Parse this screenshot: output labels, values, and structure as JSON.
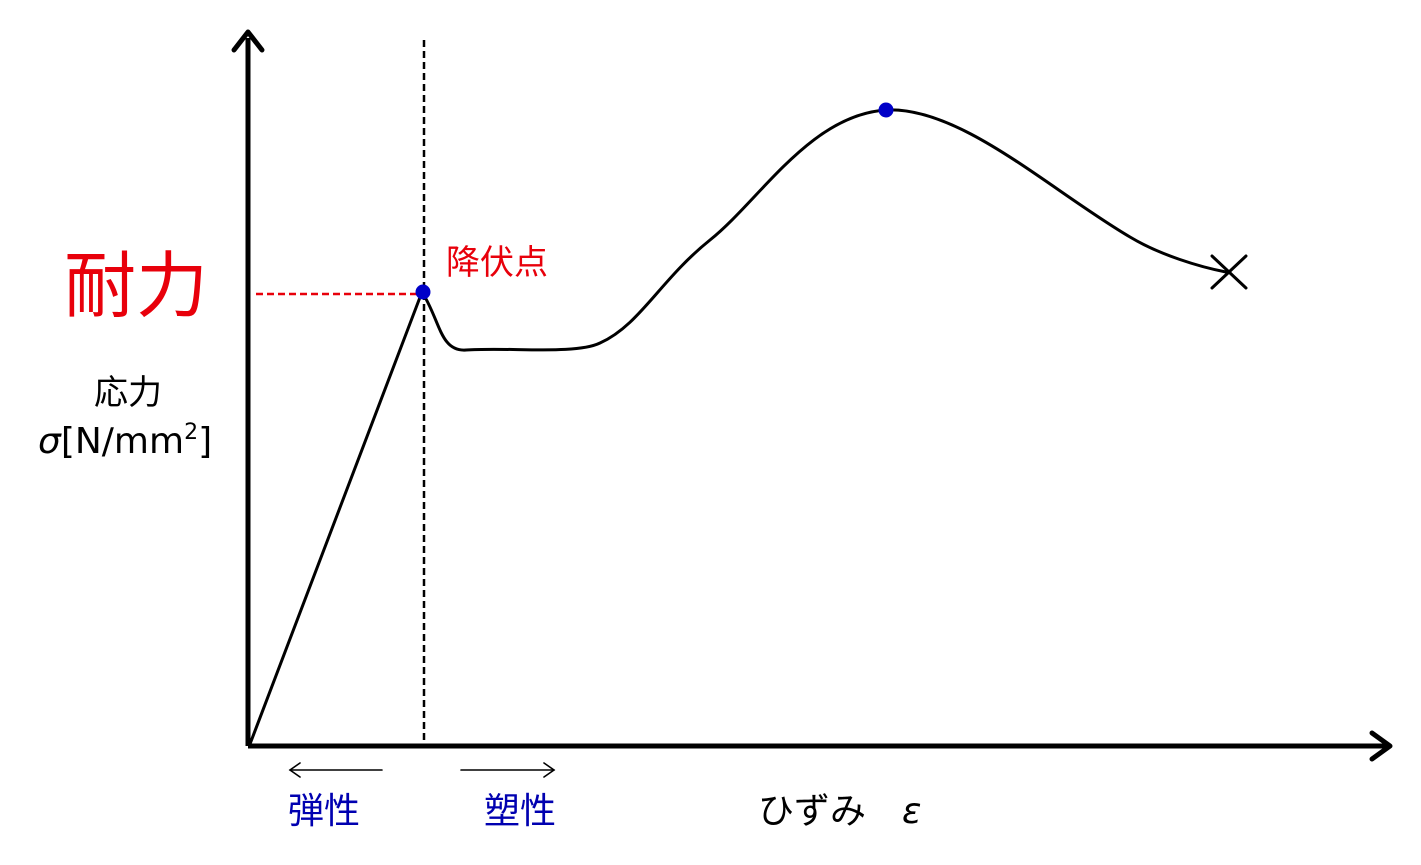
{
  "colors": {
    "axis": "#000000",
    "curve": "#000000",
    "strength_label": "#e8000b",
    "yield_label": "#e8000b",
    "strength_guide": "#e8000b",
    "point_marker": "#0000c8",
    "region_label": "#0000b0"
  },
  "labels": {
    "strength": "耐力",
    "yield_point": "降伏点",
    "stress_name": "応力",
    "stress_symbol": "σ",
    "stress_unit_open": "[N/mm",
    "stress_unit_exp": "2",
    "stress_unit_close": "]",
    "elastic": "弾性",
    "plastic": "塑性",
    "strain_name": "ひずみ",
    "strain_symbol": "ε"
  },
  "icons": {
    "fracture": "cross-mark-icon",
    "region_left": "arrow-left-icon",
    "region_right": "arrow-right-icon"
  }
}
